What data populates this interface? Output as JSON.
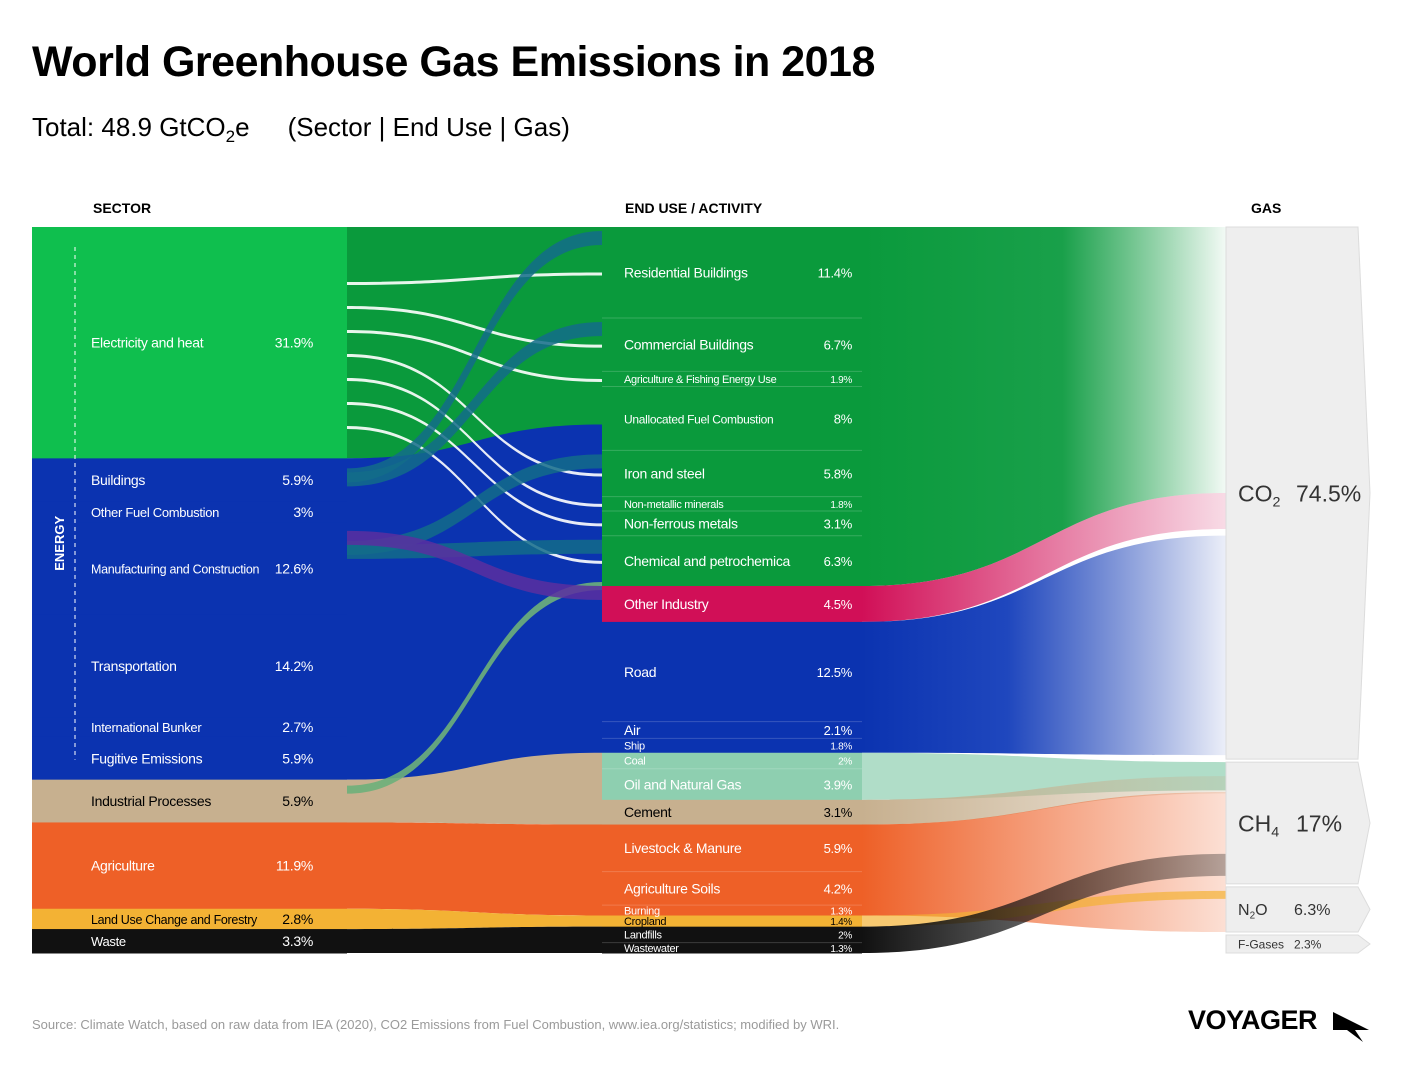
{
  "title": "World Greenhouse Gas Emissions in 2018",
  "subtitle": {
    "total_prefix": "Total: 48.9 GtCO",
    "total_sub": "2",
    "total_suffix": "e",
    "dims": "(Sector | End Use | Gas)"
  },
  "source": "Source: Climate Watch, based on raw data from IEA (2020), CO2 Emissions from Fuel Combustion, www.iea.org/statistics; modified by WRI.",
  "brand": "VOYAGER",
  "chart_data": {
    "type": "sankey",
    "title": "World Greenhouse Gas Emissions in 2018",
    "total": "48.9 GtCO2e",
    "column_headers": [
      "SECTOR",
      "END USE / ACTIVITY",
      "GAS"
    ],
    "group_label": "ENERGY",
    "colors": {
      "energy_green": "#0fbf4e",
      "energy_blue": "#0b33b0",
      "industrial": "#c7b08f",
      "agriculture": "#ee6027",
      "land_use": "#f3b234",
      "waste": "#111111",
      "other_industry": "#d10f57",
      "fuel_green": "#8ecfb0",
      "gas_box": "#eeeeee"
    },
    "sectors": [
      {
        "name": "Electricity and heat",
        "value": 31.9,
        "label": "31.9%",
        "color": "#0fbf4e"
      },
      {
        "name": "Buildings",
        "value": 5.9,
        "label": "5.9%",
        "color": "#0b33b0"
      },
      {
        "name": "Other Fuel Combustion",
        "value": 3.0,
        "label": "3%",
        "color": "#0b33b0"
      },
      {
        "name": "Manufacturing and Construction",
        "value": 12.6,
        "label": "12.6%",
        "color": "#0b33b0"
      },
      {
        "name": "Transportation",
        "value": 14.2,
        "label": "14.2%",
        "color": "#0b33b0"
      },
      {
        "name": "International Bunker",
        "value": 2.7,
        "label": "2.7%",
        "color": "#0b33b0"
      },
      {
        "name": "Fugitive Emissions",
        "value": 5.9,
        "label": "5.9%",
        "color": "#0b33b0"
      },
      {
        "name": "Industrial Processes",
        "value": 5.9,
        "label": "5.9%",
        "color": "#c7b08f"
      },
      {
        "name": "Agriculture",
        "value": 11.9,
        "label": "11.9%",
        "color": "#ee6027"
      },
      {
        "name": "Land Use Change and Forestry",
        "value": 2.8,
        "label": "2.8%",
        "color": "#f3b234"
      },
      {
        "name": "Waste",
        "value": 3.3,
        "label": "3.3%",
        "color": "#111111"
      }
    ],
    "end_uses": [
      {
        "name": "Residential Buildings",
        "value": 11.4,
        "label": "11.4%",
        "band": "green"
      },
      {
        "name": "Commercial Buildings",
        "value": 6.7,
        "label": "6.7%",
        "band": "green"
      },
      {
        "name": "Agriculture & Fishing Energy Use",
        "value": 1.9,
        "label": "1.9%",
        "band": "green"
      },
      {
        "name": "Unallocated Fuel Combustion",
        "value": 8.0,
        "label": "8%",
        "band": "green"
      },
      {
        "name": "Iron and steel",
        "value": 5.8,
        "label": "5.8%",
        "band": "green"
      },
      {
        "name": "Non-metallic minerals",
        "value": 1.8,
        "label": "1.8%",
        "band": "green"
      },
      {
        "name": "Non-ferrous metals",
        "value": 3.1,
        "label": "3.1%",
        "band": "green"
      },
      {
        "name": "Chemical and petrochemica",
        "value": 6.3,
        "label": "6.3%",
        "band": "green"
      },
      {
        "name": "Other Industry",
        "value": 4.5,
        "label": "4.5%",
        "band": "other_industry"
      },
      {
        "name": "Road",
        "value": 12.5,
        "label": "12.5%",
        "band": "blue"
      },
      {
        "name": "Air",
        "value": 2.1,
        "label": "2.1%",
        "band": "blue"
      },
      {
        "name": "Ship",
        "value": 1.8,
        "label": "1.8%",
        "band": "blue"
      },
      {
        "name": "Coal",
        "value": 2.0,
        "label": "2%",
        "band": "fuel"
      },
      {
        "name": "Oil and Natural Gas",
        "value": 3.9,
        "label": "3.9%",
        "band": "fuel"
      },
      {
        "name": "Cement",
        "value": 3.1,
        "label": "3.1%",
        "band": "industrial"
      },
      {
        "name": "Livestock & Manure",
        "value": 5.9,
        "label": "5.9%",
        "band": "agriculture"
      },
      {
        "name": "Agriculture Soils",
        "value": 4.2,
        "label": "4.2%",
        "band": "agriculture"
      },
      {
        "name": "Burning",
        "value": 1.3,
        "label": "1.3%",
        "band": "agriculture"
      },
      {
        "name": "Cropland",
        "value": 1.4,
        "label": "1.4%",
        "band": "land_use"
      },
      {
        "name": "Landfills",
        "value": 2.0,
        "label": "2%",
        "band": "waste"
      },
      {
        "name": "Wastewater",
        "value": 1.3,
        "label": "1.3%",
        "band": "waste"
      }
    ],
    "gases": [
      {
        "formula": "CO",
        "sub": "2",
        "tail": "",
        "value": 74.5,
        "label": "74.5%"
      },
      {
        "formula": "CH",
        "sub": "4",
        "tail": "",
        "value": 17.0,
        "label": "17%"
      },
      {
        "formula": "N",
        "sub": "2",
        "tail": "O",
        "value": 6.3,
        "label": "6.3%"
      },
      {
        "formula": "F-Gases",
        "sub": "",
        "tail": "",
        "value": 2.3,
        "label": "2.3%"
      }
    ]
  }
}
